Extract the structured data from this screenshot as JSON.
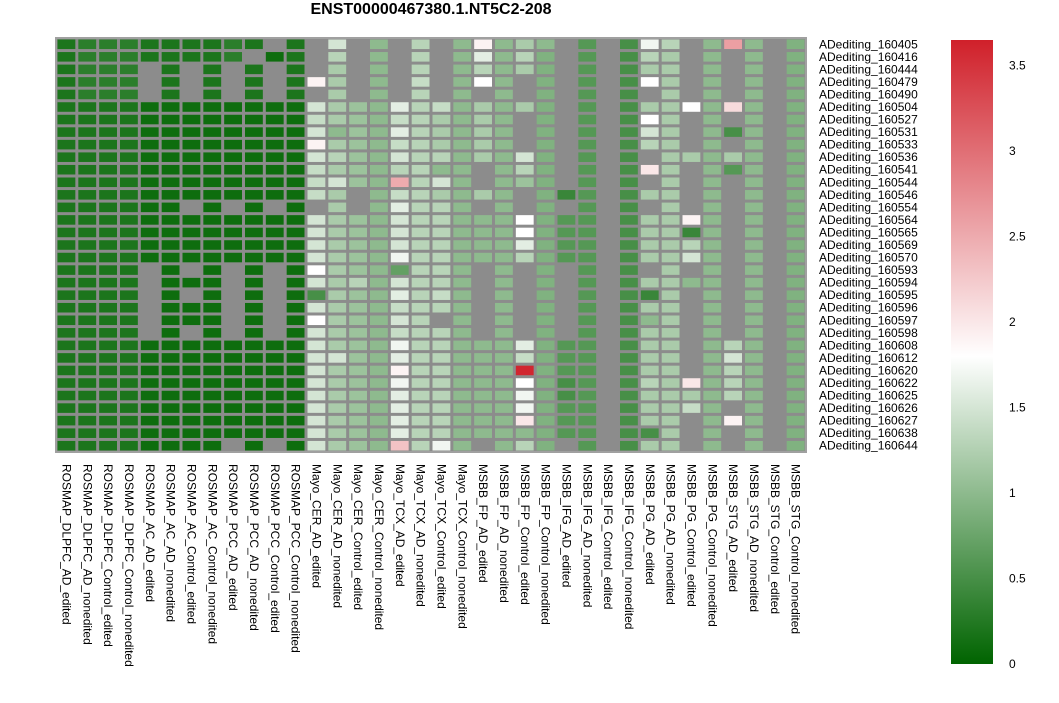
{
  "chart_data": {
    "type": "heatmap",
    "title": "ENST00000467380.1.NT5C2-208",
    "columns": [
      "ROSMAP_DLPFC_AD_edited",
      "ROSMAP_DLPFC_AD_nonedited",
      "ROSMAP_DLPFC_Control_edited",
      "ROSMAP_DLPFC_Control_nonedited",
      "ROSMAP_AC_AD_edited",
      "ROSMAP_AC_AD_nonedited",
      "ROSMAP_AC_Control_edited",
      "ROSMAP_AC_Control_nonedited",
      "ROSMAP_PCC_AD_edited",
      "ROSMAP_PCC_AD_nonedited",
      "ROSMAP_PCC_Control_edited",
      "ROSMAP_PCC_Control_nonedited",
      "Mayo_CER_AD_edited",
      "Mayo_CER_AD_nonedited",
      "Mayo_CER_Control_edited",
      "Mayo_CER_Control_nonedited",
      "Mayo_TCX_AD_edited",
      "Mayo_TCX_AD_nonedited",
      "Mayo_TCX_Control_edited",
      "Mayo_TCX_Control_nonedited",
      "MSBB_FP_AD_edited",
      "MSBB_FP_AD_nonedited",
      "MSBB_FP_Control_edited",
      "MSBB_FP_Control_nonedited",
      "MSBB_IFG_AD_edited",
      "MSBB_IFG_AD_nonedited",
      "MSBB_IFG_Control_edited",
      "MSBB_IFG_Control_nonedited",
      "MSBB_PG_AD_edited",
      "MSBB_PG_AD_nonedited",
      "MSBB_PG_Control_edited",
      "MSBB_PG_Control_nonedited",
      "MSBB_STG_AD_edited",
      "MSBB_STG_AD_nonedited",
      "MSBB_STG_Control_edited",
      "MSBB_STG_Control_nonedited"
    ],
    "rows": [
      "ADediting_160405",
      "ADediting_160416",
      "ADediting_160444",
      "ADediting_160479",
      "ADediting_160490",
      "ADediting_160504",
      "ADediting_160527",
      "ADediting_160531",
      "ADediting_160533",
      "ADediting_160536",
      "ADediting_160541",
      "ADediting_160544",
      "ADediting_160546",
      "ADediting_160554",
      "ADediting_160564",
      "ADediting_160565",
      "ADediting_160569",
      "ADediting_160570",
      "ADediting_160593",
      "ADediting_160594",
      "ADediting_160595",
      "ADediting_160596",
      "ADediting_160597",
      "ADediting_160598",
      "ADediting_160608",
      "ADediting_160612",
      "ADediting_160620",
      "ADediting_160622",
      "ADediting_160625",
      "ADediting_160626",
      "ADediting_160627",
      "ADediting_160638",
      "ADediting_160644"
    ],
    "values": [
      [
        0.2,
        0.3,
        0.3,
        0.3,
        0.2,
        0.2,
        0.2,
        0.2,
        0.3,
        0.2,
        null,
        0.2,
        null,
        1.5,
        null,
        1.0,
        null,
        1.3,
        null,
        1.0,
        1.9,
        1.0,
        1.2,
        1.0,
        null,
        0.6,
        null,
        0.5,
        1.7,
        1.3,
        null,
        1.0,
        2.6,
        1.0,
        null,
        0.9
      ],
      [
        0.2,
        0.3,
        0.3,
        0.3,
        0.2,
        0.2,
        0.2,
        0.2,
        0.3,
        null,
        0.1,
        0.2,
        null,
        1.3,
        null,
        1.0,
        null,
        1.3,
        null,
        1.0,
        1.6,
        1.0,
        1.3,
        0.9,
        null,
        0.6,
        null,
        0.5,
        1.3,
        1.2,
        null,
        1.0,
        null,
        1.0,
        null,
        0.9
      ],
      [
        0.2,
        0.3,
        0.3,
        0.3,
        null,
        0.2,
        null,
        0.2,
        null,
        0.2,
        null,
        0.2,
        null,
        1.2,
        null,
        1.0,
        null,
        1.3,
        null,
        1.0,
        1.3,
        1.0,
        1.2,
        0.9,
        null,
        0.6,
        null,
        0.5,
        1.2,
        1.2,
        null,
        1.0,
        null,
        1.0,
        null,
        0.9
      ],
      [
        0.2,
        0.3,
        0.3,
        0.3,
        null,
        0.2,
        null,
        0.2,
        null,
        0.2,
        null,
        0.2,
        1.9,
        1.2,
        null,
        1.0,
        null,
        1.4,
        null,
        1.0,
        1.8,
        1.0,
        null,
        0.9,
        null,
        0.6,
        null,
        0.5,
        1.8,
        1.2,
        null,
        1.0,
        null,
        1.0,
        null,
        0.9
      ],
      [
        0.2,
        0.3,
        0.3,
        0.3,
        null,
        0.2,
        null,
        0.2,
        null,
        0.2,
        null,
        0.2,
        null,
        1.2,
        null,
        1.0,
        null,
        1.3,
        null,
        1.0,
        null,
        1.0,
        null,
        0.9,
        null,
        0.6,
        null,
        0.5,
        null,
        1.2,
        null,
        1.0,
        null,
        1.0,
        null,
        0.9
      ],
      [
        0.2,
        0.2,
        0.2,
        0.2,
        0.1,
        0.1,
        0.1,
        0.1,
        0.1,
        0.1,
        0.1,
        0.1,
        1.5,
        1.2,
        1.1,
        1.0,
        1.6,
        1.3,
        1.4,
        1.0,
        1.2,
        1.0,
        1.2,
        0.9,
        null,
        0.6,
        null,
        0.5,
        1.2,
        1.2,
        1.8,
        1.0,
        2.1,
        1.0,
        null,
        0.9
      ],
      [
        0.2,
        0.2,
        0.2,
        0.2,
        0.1,
        0.1,
        0.1,
        0.1,
        0.1,
        0.1,
        0.1,
        0.1,
        1.4,
        1.2,
        1.1,
        1.0,
        1.4,
        1.3,
        1.2,
        1.0,
        1.2,
        1.0,
        null,
        0.9,
        null,
        0.6,
        null,
        0.5,
        1.8,
        1.2,
        null,
        1.0,
        null,
        1.0,
        null,
        0.9
      ],
      [
        0.2,
        0.2,
        0.2,
        0.2,
        0.1,
        0.1,
        0.1,
        0.1,
        0.1,
        0.1,
        0.1,
        0.1,
        1.5,
        1.0,
        1.1,
        1.0,
        1.6,
        1.3,
        1.2,
        1.0,
        1.2,
        1.0,
        null,
        0.9,
        null,
        0.6,
        null,
        0.5,
        1.5,
        1.2,
        null,
        1.0,
        0.5,
        1.0,
        null,
        0.9
      ],
      [
        0.2,
        0.2,
        0.2,
        0.2,
        0.1,
        0.1,
        0.1,
        0.1,
        0.1,
        0.1,
        0.1,
        0.1,
        1.9,
        1.2,
        1.1,
        1.0,
        1.4,
        1.3,
        1.2,
        1.0,
        1.2,
        1.0,
        null,
        0.9,
        null,
        0.6,
        null,
        0.5,
        1.3,
        1.2,
        null,
        1.0,
        null,
        1.0,
        null,
        0.9
      ],
      [
        0.2,
        0.2,
        0.2,
        0.2,
        0.1,
        0.1,
        0.1,
        0.1,
        0.1,
        0.1,
        0.1,
        0.1,
        1.5,
        1.3,
        1.1,
        1.0,
        1.5,
        1.3,
        1.3,
        1.0,
        1.2,
        1.0,
        1.5,
        0.9,
        null,
        0.6,
        null,
        0.5,
        null,
        1.2,
        1.2,
        1.0,
        1.2,
        1.0,
        null,
        0.9
      ],
      [
        0.2,
        0.2,
        0.2,
        0.2,
        0.1,
        0.1,
        0.1,
        0.1,
        0.1,
        0.1,
        0.1,
        0.1,
        1.4,
        1.2,
        1.1,
        1.0,
        1.3,
        1.3,
        1.0,
        1.0,
        null,
        1.0,
        1.3,
        0.9,
        null,
        0.6,
        null,
        0.5,
        2.0,
        1.2,
        null,
        1.0,
        0.6,
        1.0,
        null,
        0.9
      ],
      [
        0.2,
        0.2,
        0.2,
        0.2,
        0.1,
        0.1,
        0.1,
        0.1,
        0.1,
        0.1,
        0.1,
        0.1,
        1.4,
        1.5,
        1.1,
        1.0,
        2.5,
        1.3,
        1.5,
        1.0,
        null,
        1.0,
        1.1,
        0.9,
        null,
        0.6,
        null,
        0.5,
        null,
        1.2,
        null,
        1.0,
        null,
        1.0,
        null,
        0.9
      ],
      [
        0.2,
        0.2,
        0.2,
        0.2,
        0.1,
        0.1,
        0.1,
        0.1,
        0.1,
        0.1,
        0.1,
        0.1,
        1.4,
        1.2,
        null,
        1.0,
        1.4,
        1.3,
        1.2,
        1.0,
        1.2,
        1.0,
        null,
        0.9,
        0.4,
        0.6,
        null,
        0.5,
        1.2,
        1.2,
        null,
        1.0,
        null,
        1.0,
        null,
        0.9
      ],
      [
        0.2,
        0.2,
        0.2,
        0.2,
        0.1,
        0.1,
        null,
        0.1,
        null,
        0.1,
        null,
        0.1,
        null,
        1.2,
        null,
        1.0,
        1.6,
        1.3,
        1.3,
        1.0,
        null,
        1.0,
        null,
        0.9,
        null,
        0.6,
        null,
        0.5,
        null,
        1.2,
        null,
        1.0,
        null,
        1.0,
        null,
        0.9
      ],
      [
        0.2,
        0.2,
        0.2,
        0.2,
        0.1,
        0.1,
        0.1,
        0.1,
        0.1,
        0.1,
        0.1,
        0.1,
        1.5,
        1.2,
        1.1,
        1.0,
        1.5,
        1.3,
        1.3,
        1.0,
        1.0,
        1.0,
        1.8,
        0.9,
        0.6,
        0.6,
        null,
        0.5,
        1.2,
        1.2,
        1.9,
        1.0,
        null,
        1.0,
        null,
        0.9
      ],
      [
        0.2,
        0.2,
        0.2,
        0.2,
        0.1,
        0.1,
        0.1,
        0.1,
        0.1,
        0.1,
        0.1,
        0.1,
        1.5,
        1.2,
        1.1,
        1.0,
        1.5,
        1.3,
        1.3,
        1.0,
        1.0,
        1.0,
        1.8,
        0.9,
        0.6,
        0.6,
        null,
        0.5,
        1.2,
        1.2,
        0.4,
        1.0,
        null,
        1.0,
        null,
        0.9
      ],
      [
        0.2,
        0.2,
        0.2,
        0.2,
        0.1,
        0.1,
        0.1,
        0.1,
        0.1,
        0.1,
        0.1,
        0.1,
        1.5,
        1.2,
        1.1,
        1.0,
        1.5,
        1.3,
        1.3,
        1.0,
        1.0,
        1.0,
        1.6,
        0.9,
        0.6,
        0.6,
        null,
        0.5,
        1.2,
        1.2,
        1.3,
        1.0,
        null,
        1.0,
        null,
        0.9
      ],
      [
        0.2,
        0.2,
        0.2,
        0.2,
        0.1,
        0.1,
        0.1,
        0.1,
        0.1,
        0.1,
        0.1,
        0.1,
        1.5,
        1.2,
        1.1,
        1.0,
        1.7,
        1.3,
        1.3,
        1.0,
        1.0,
        1.0,
        1.3,
        0.9,
        0.6,
        0.6,
        null,
        0.5,
        1.2,
        1.2,
        1.5,
        1.0,
        null,
        1.0,
        null,
        0.9
      ],
      [
        0.2,
        0.2,
        0.2,
        0.2,
        null,
        0.1,
        null,
        0.1,
        null,
        0.1,
        null,
        0.1,
        1.8,
        1.2,
        1.1,
        1.0,
        0.7,
        1.3,
        1.3,
        1.0,
        null,
        1.0,
        null,
        0.9,
        null,
        0.6,
        null,
        0.5,
        null,
        1.2,
        null,
        1.0,
        null,
        1.0,
        null,
        0.9
      ],
      [
        0.2,
        0.2,
        0.2,
        0.2,
        null,
        0.1,
        0.1,
        0.1,
        null,
        0.1,
        null,
        0.1,
        1.5,
        1.2,
        1.3,
        1.0,
        1.5,
        1.3,
        1.3,
        1.0,
        null,
        1.0,
        null,
        0.9,
        null,
        0.6,
        null,
        0.5,
        1.2,
        1.2,
        1.0,
        1.0,
        null,
        1.0,
        null,
        0.9
      ],
      [
        0.2,
        0.2,
        0.2,
        0.2,
        null,
        0.1,
        null,
        0.1,
        null,
        0.1,
        null,
        0.1,
        0.5,
        1.2,
        1.1,
        1.0,
        1.6,
        1.3,
        1.4,
        1.0,
        null,
        1.0,
        null,
        0.9,
        null,
        0.6,
        null,
        0.5,
        0.4,
        1.2,
        null,
        1.0,
        null,
        1.0,
        null,
        0.9
      ],
      [
        0.2,
        0.2,
        0.2,
        0.2,
        null,
        0.1,
        0.1,
        0.1,
        null,
        0.1,
        null,
        0.1,
        1.5,
        1.2,
        1.1,
        1.0,
        1.4,
        1.3,
        1.3,
        1.0,
        null,
        1.0,
        null,
        0.9,
        null,
        0.6,
        null,
        0.5,
        1.2,
        1.2,
        null,
        1.0,
        null,
        1.0,
        null,
        0.9
      ],
      [
        0.2,
        0.2,
        0.2,
        0.2,
        null,
        0.1,
        0.1,
        0.1,
        null,
        0.1,
        null,
        0.1,
        1.8,
        1.2,
        1.1,
        1.0,
        1.5,
        1.3,
        null,
        1.0,
        null,
        1.0,
        null,
        0.9,
        null,
        0.6,
        null,
        0.5,
        1.0,
        1.2,
        null,
        1.0,
        null,
        1.0,
        null,
        0.9
      ],
      [
        0.2,
        0.2,
        0.2,
        0.2,
        null,
        0.1,
        null,
        0.1,
        null,
        0.1,
        null,
        0.1,
        1.5,
        1.2,
        1.1,
        1.0,
        1.4,
        1.3,
        1.3,
        1.0,
        null,
        1.0,
        null,
        0.9,
        null,
        0.6,
        null,
        0.5,
        1.2,
        1.2,
        null,
        1.0,
        null,
        1.0,
        null,
        0.9
      ],
      [
        0.2,
        0.2,
        0.2,
        0.2,
        0.1,
        0.1,
        0.1,
        0.1,
        0.1,
        0.1,
        0.1,
        0.1,
        1.5,
        1.2,
        1.1,
        1.0,
        1.7,
        1.3,
        1.3,
        1.0,
        1.0,
        1.0,
        1.6,
        0.9,
        0.6,
        0.6,
        null,
        0.5,
        1.2,
        1.2,
        null,
        1.0,
        1.3,
        1.0,
        null,
        0.9
      ],
      [
        0.2,
        0.2,
        0.2,
        0.2,
        0.1,
        0.1,
        0.1,
        0.1,
        0.1,
        0.1,
        0.1,
        0.1,
        1.5,
        1.5,
        1.1,
        1.0,
        1.6,
        1.3,
        1.3,
        1.0,
        1.0,
        1.0,
        1.4,
        0.9,
        0.6,
        0.6,
        null,
        0.5,
        1.2,
        1.2,
        null,
        1.0,
        1.5,
        1.0,
        null,
        0.9
      ],
      [
        0.2,
        0.2,
        0.2,
        0.2,
        0.1,
        0.1,
        0.1,
        0.1,
        0.1,
        0.1,
        0.1,
        0.1,
        1.5,
        1.2,
        1.1,
        1.0,
        1.9,
        1.3,
        1.3,
        1.0,
        1.0,
        1.0,
        3.6,
        0.9,
        0.6,
        0.6,
        null,
        0.5,
        1.2,
        1.2,
        null,
        1.0,
        1.3,
        1.0,
        null,
        0.9
      ],
      [
        0.2,
        0.2,
        0.2,
        0.2,
        0.1,
        0.1,
        0.1,
        0.1,
        0.1,
        0.1,
        0.1,
        0.1,
        1.5,
        1.2,
        1.1,
        1.0,
        1.7,
        1.3,
        1.3,
        1.0,
        1.0,
        1.0,
        1.8,
        0.9,
        0.5,
        0.6,
        null,
        0.5,
        1.3,
        1.2,
        2.0,
        1.0,
        1.3,
        1.0,
        null,
        0.9
      ],
      [
        0.2,
        0.2,
        0.2,
        0.2,
        0.1,
        0.1,
        0.1,
        0.1,
        0.1,
        0.1,
        0.1,
        0.1,
        1.5,
        1.2,
        1.1,
        1.0,
        1.6,
        1.3,
        1.3,
        1.0,
        1.0,
        1.0,
        1.7,
        0.9,
        0.5,
        0.6,
        null,
        0.5,
        1.2,
        1.2,
        1.2,
        1.0,
        1.3,
        1.0,
        null,
        0.9
      ],
      [
        0.2,
        0.2,
        0.2,
        0.2,
        0.1,
        0.1,
        0.1,
        0.1,
        0.1,
        0.1,
        0.1,
        0.1,
        1.5,
        1.2,
        1.1,
        1.0,
        1.6,
        1.3,
        1.3,
        1.0,
        1.0,
        1.0,
        1.7,
        0.9,
        0.6,
        0.6,
        null,
        0.5,
        1.2,
        1.2,
        1.4,
        1.0,
        null,
        1.0,
        null,
        0.9
      ],
      [
        0.2,
        0.2,
        0.2,
        0.2,
        0.1,
        0.1,
        0.1,
        0.1,
        0.1,
        0.1,
        0.1,
        0.1,
        1.5,
        1.2,
        1.1,
        1.0,
        1.6,
        1.3,
        1.3,
        1.0,
        1.0,
        1.0,
        2.0,
        0.9,
        0.6,
        0.6,
        null,
        0.5,
        1.2,
        1.2,
        null,
        1.0,
        1.9,
        1.0,
        null,
        0.9
      ],
      [
        0.2,
        0.2,
        0.2,
        0.2,
        0.1,
        0.1,
        0.1,
        0.1,
        0.1,
        0.1,
        0.1,
        0.1,
        1.5,
        1.2,
        1.1,
        1.0,
        1.6,
        1.3,
        1.3,
        1.0,
        1.0,
        1.0,
        1.0,
        0.9,
        0.6,
        0.6,
        null,
        0.5,
        0.5,
        1.2,
        null,
        1.0,
        null,
        1.0,
        null,
        0.9
      ],
      [
        0.2,
        0.2,
        0.2,
        0.2,
        0.1,
        0.1,
        0.1,
        0.1,
        null,
        0.1,
        null,
        0.1,
        1.5,
        1.2,
        1.1,
        1.0,
        2.3,
        1.3,
        1.7,
        1.0,
        null,
        1.0,
        1.3,
        0.9,
        null,
        0.6,
        null,
        0.5,
        1.2,
        1.2,
        null,
        1.0,
        null,
        1.0,
        null,
        0.9
      ]
    ],
    "missing_color": "#8c8c8c",
    "colorscale": [
      "#006400",
      "#ffffff",
      "#d0202a"
    ],
    "zlim": [
      0,
      3.65
    ],
    "zmid": 1.8,
    "colorbar_ticks": [
      0,
      0.5,
      1,
      1.5,
      2,
      2.5,
      3,
      3.5
    ],
    "colorbar_tick_labels": [
      "0",
      "0.5",
      "1",
      "1.5",
      "2",
      "2.5",
      "3",
      "3.5"
    ],
    "xlabel": "",
    "ylabel": "",
    "legend_position": "right"
  }
}
